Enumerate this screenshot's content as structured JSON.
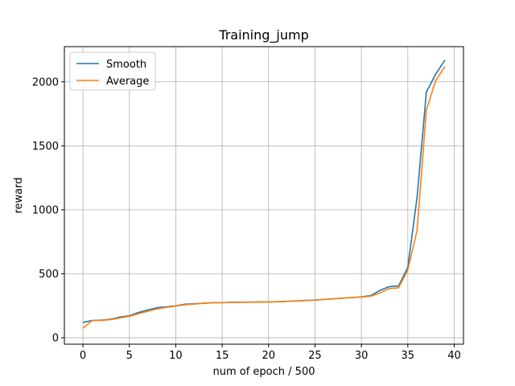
{
  "chart_data": {
    "type": "line",
    "title": "Training_jump",
    "xlabel": "num of epoch / 500",
    "ylabel": "reward",
    "xlim": [
      -2,
      41
    ],
    "ylim": [
      -50,
      2275
    ],
    "xticks": [
      0,
      5,
      10,
      15,
      20,
      25,
      30,
      35,
      40
    ],
    "yticks": [
      0,
      500,
      1000,
      1500,
      2000
    ],
    "grid": true,
    "legend_position": "top-left",
    "x": [
      0,
      1,
      2,
      3,
      4,
      5,
      6,
      7,
      8,
      9,
      10,
      11,
      12,
      13,
      14,
      15,
      16,
      17,
      18,
      19,
      20,
      21,
      22,
      23,
      24,
      25,
      26,
      27,
      28,
      29,
      30,
      31,
      32,
      33,
      34,
      35,
      36,
      37,
      38,
      39
    ],
    "series": [
      {
        "name": "Smooth",
        "color": "#1f77b4",
        "values": [
          120,
          135,
          138,
          145,
          162,
          172,
          198,
          218,
          235,
          242,
          250,
          262,
          266,
          270,
          275,
          275,
          277,
          278,
          279,
          280,
          280,
          282,
          285,
          288,
          292,
          295,
          300,
          305,
          310,
          315,
          320,
          330,
          370,
          400,
          405,
          550,
          1100,
          1920,
          2060,
          2170
        ]
      },
      {
        "name": "Average",
        "color": "#ff7f0e",
        "values": [
          75,
          135,
          135,
          142,
          155,
          168,
          188,
          208,
          225,
          238,
          248,
          258,
          264,
          270,
          274,
          274,
          276,
          277,
          278,
          279,
          280,
          281,
          284,
          287,
          291,
          294,
          299,
          304,
          309,
          314,
          318,
          325,
          350,
          385,
          390,
          530,
          840,
          1780,
          2010,
          2120
        ]
      }
    ]
  }
}
